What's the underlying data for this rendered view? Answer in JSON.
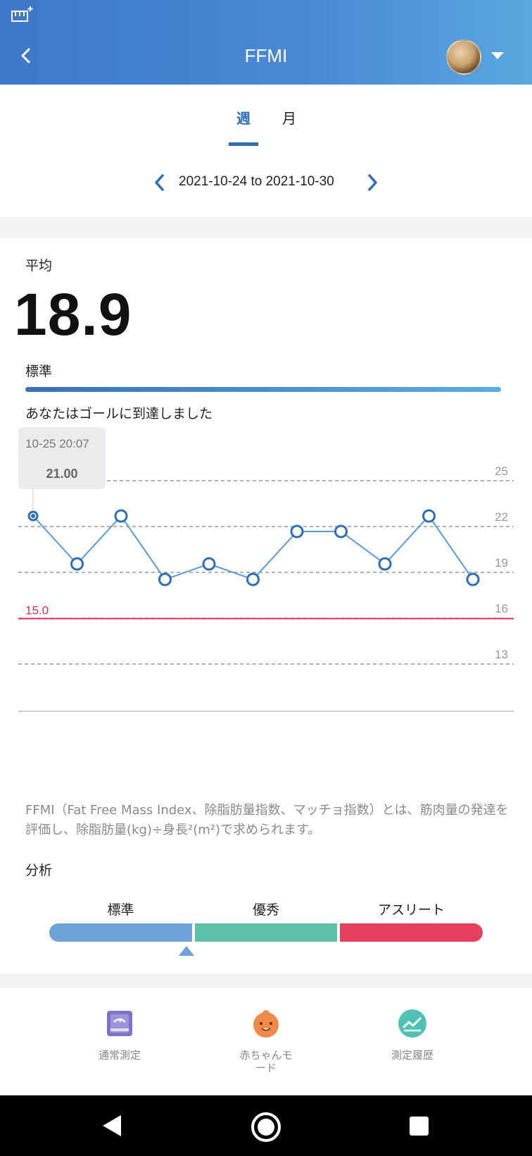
{
  "header": {
    "title": "FFMI"
  },
  "tabs": {
    "week": "週",
    "month": "月"
  },
  "date_range": "2021-10-24 to 2021-10-30",
  "summary": {
    "avg_label": "平均",
    "avg_value": "18.9",
    "standard_label": "標準",
    "goal_message": "あなたはゴールに到達しました"
  },
  "tooltip": {
    "datetime": "10-25 20:07",
    "value": "21.00"
  },
  "chart_data": {
    "type": "line",
    "x": [
      "1",
      "2",
      "3",
      "4",
      "5",
      "6",
      "7",
      "8",
      "9",
      "10",
      "11"
    ],
    "values": [
      21,
      18,
      21,
      17,
      18,
      17,
      20,
      20,
      18,
      21,
      17
    ],
    "ylim": [
      10,
      25
    ],
    "ytick_labels": [
      "25",
      "22",
      "19",
      "16",
      "13"
    ],
    "target": {
      "value": 15,
      "label": "15.0",
      "color": "#d6335a"
    },
    "line_color": "#5b9bd5",
    "point_stroke": "#2e6eb5",
    "grid": "dashed horizontal"
  },
  "description": "FFMI（Fat Free Mass Index、除脂肪量指数、マッチョ指数）とは、筋肉量の発達を評価し、除脂肪量(kg)÷身長²(m²)で求められます。",
  "analysis": {
    "label": "分析",
    "segments": [
      "標準",
      "優秀",
      "アスリート"
    ],
    "segment_colors": [
      "#6ea2d8",
      "#5cc1a6",
      "#e6405f"
    ],
    "current_segment": "標準"
  },
  "bottom_nav": {
    "normal": "通常測定",
    "baby_line1": "赤ちゃんモ",
    "baby_line2": "ード",
    "history": "測定履歴"
  }
}
